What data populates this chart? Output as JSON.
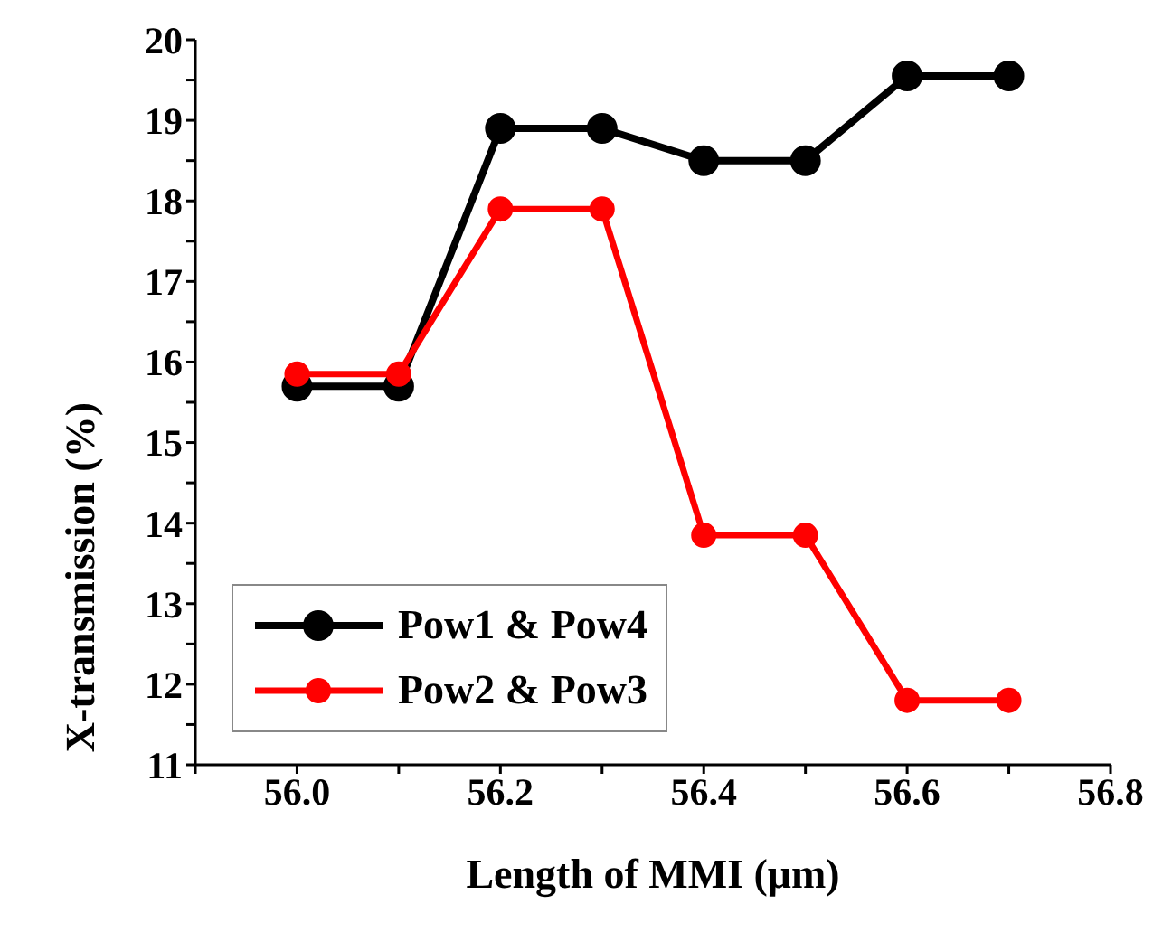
{
  "chart_data": {
    "type": "line",
    "xlabel": "Length of MMI (μm)",
    "ylabel": "X-transmission (%)",
    "x": [
      56.0,
      56.1,
      56.2,
      56.3,
      56.4,
      56.5,
      56.6,
      56.7
    ],
    "series": [
      {
        "name": "Pow1 & Pow4",
        "color": "#000000",
        "values": [
          15.7,
          15.7,
          18.9,
          18.9,
          18.5,
          18.5,
          19.55,
          19.55
        ]
      },
      {
        "name": "Pow2 & Pow3",
        "color": "#ff0000",
        "values": [
          15.85,
          15.85,
          17.9,
          17.9,
          13.85,
          13.85,
          11.8,
          11.8
        ]
      }
    ],
    "xlim": [
      55.9,
      56.8
    ],
    "xticks": [
      {
        "value": 55.9,
        "label": null
      },
      {
        "value": 56.0,
        "label": "56.0"
      },
      {
        "value": 56.1,
        "label": null
      },
      {
        "value": 56.2,
        "label": "56.2"
      },
      {
        "value": 56.3,
        "label": null
      },
      {
        "value": 56.4,
        "label": "56.4"
      },
      {
        "value": 56.5,
        "label": null
      },
      {
        "value": 56.6,
        "label": "56.6"
      },
      {
        "value": 56.7,
        "label": null
      },
      {
        "value": 56.8,
        "label": "56.8"
      }
    ],
    "ylim": [
      11,
      20
    ],
    "yticks": [
      11,
      {
        "value": 11.5,
        "label": null
      },
      12,
      {
        "value": 12.5,
        "label": null
      },
      13,
      {
        "value": 13.5,
        "label": null
      },
      14,
      {
        "value": 14.5,
        "label": null
      },
      15,
      {
        "value": 15.5,
        "label": null
      },
      16,
      {
        "value": 16.5,
        "label": null
      },
      17,
      {
        "value": 17.5,
        "label": null
      },
      18,
      {
        "value": 18.5,
        "label": null
      },
      19,
      {
        "value": 19.5,
        "label": null
      },
      20
    ],
    "grid": false,
    "legend": "bottom left",
    "marker": "circle",
    "line_style": "solid"
  }
}
